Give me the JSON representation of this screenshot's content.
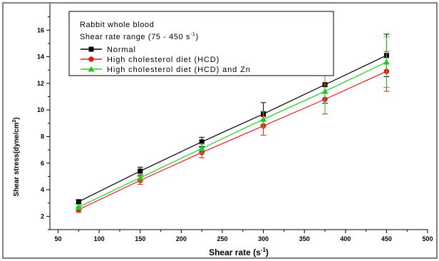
{
  "chart_data": {
    "type": "line",
    "legend": {
      "title_line1": "Rabbit whole blood",
      "title_line2_prefix": "Shear rate range (75 - 450 s",
      "title_line2_sup": "-1",
      "title_line2_suffix": ")",
      "placement": "top-left"
    },
    "xlabel_prefix": "Shear rate (s",
    "xlabel_sup": "-1",
    "xlabel_suffix": ")",
    "ylabel_prefix": "Shear stress(dyne/cm",
    "ylabel_sup": "2",
    "ylabel_suffix": ")",
    "x_ticks": [
      "50",
      "100",
      "150",
      "200",
      "250",
      "300",
      "350",
      "400",
      "450",
      "500"
    ],
    "y_ticks": [
      "2",
      "4",
      "6",
      "8",
      "10",
      "12",
      "14",
      "16"
    ],
    "xlim": [
      40,
      500
    ],
    "ylim": [
      1.0,
      18.0
    ],
    "x": [
      75,
      150,
      225,
      300,
      375,
      450
    ],
    "series": [
      {
        "name": "Normal",
        "color": "#000000",
        "marker": "square",
        "values": [
          3.1,
          5.4,
          7.6,
          9.7,
          11.9,
          14.1
        ],
        "errors": [
          0.15,
          0.3,
          0.35,
          0.85,
          1.4,
          1.6
        ]
      },
      {
        "name": "High cholesterol diet (HCD)",
        "color": "#e41a1c",
        "marker": "circle",
        "values": [
          2.5,
          4.7,
          6.8,
          8.8,
          10.8,
          12.9
        ],
        "errors": [
          0.2,
          0.3,
          0.4,
          0.7,
          1.1,
          1.5
        ]
      },
      {
        "name": "High cholesterol diet (HCD) and Zn",
        "color": "#22cc22",
        "marker": "triangle",
        "values": [
          2.7,
          4.9,
          7.1,
          9.3,
          11.4,
          13.6
        ],
        "errors": [
          0.2,
          0.3,
          0.35,
          0.6,
          1.7,
          1.9
        ]
      }
    ],
    "grid": false
  }
}
